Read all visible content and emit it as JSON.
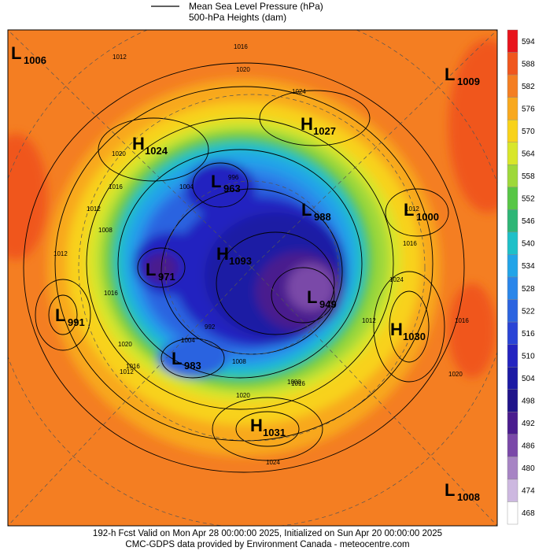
{
  "legend": {
    "pressure": "Mean Sea Level Pressure (hPa)",
    "heights": "500-hPa Heights (dam)"
  },
  "colorbar": [
    {
      "label": "594",
      "color": "#e8141c"
    },
    {
      "label": "588",
      "color": "#f0561e"
    },
    {
      "label": "582",
      "color": "#f47e22"
    },
    {
      "label": "576",
      "color": "#f8a81e"
    },
    {
      "label": "570",
      "color": "#f8d21a"
    },
    {
      "label": "564",
      "color": "#d8e62a"
    },
    {
      "label": "558",
      "color": "#9ed83a"
    },
    {
      "label": "552",
      "color": "#58c646"
    },
    {
      "label": "546",
      "color": "#2eb676"
    },
    {
      "label": "540",
      "color": "#1ec0c8"
    },
    {
      "label": "534",
      "color": "#22a4e8"
    },
    {
      "label": "528",
      "color": "#2a86ea"
    },
    {
      "label": "522",
      "color": "#2c64e0"
    },
    {
      "label": "516",
      "color": "#2a44d6"
    },
    {
      "label": "510",
      "color": "#2424c0"
    },
    {
      "label": "504",
      "color": "#1c1aa4"
    },
    {
      "label": "498",
      "color": "#20148a"
    },
    {
      "label": "492",
      "color": "#4a1c8e"
    },
    {
      "label": "486",
      "color": "#7a48a8"
    },
    {
      "label": "480",
      "color": "#a784c4"
    },
    {
      "label": "474",
      "color": "#cdb8e0"
    },
    {
      "label": "468",
      "color": "#ffffff"
    }
  ],
  "centers": [
    {
      "letter": "L",
      "value": "1006"
    },
    {
      "letter": "L",
      "value": "1009"
    },
    {
      "letter": "H",
      "value": "1027"
    },
    {
      "letter": "H",
      "value": "1024"
    },
    {
      "letter": "L",
      "value": "963"
    },
    {
      "letter": "L",
      "value": "988"
    },
    {
      "letter": "L",
      "value": "1000"
    },
    {
      "letter": "L",
      "value": "971"
    },
    {
      "letter": "H",
      "value": "1093"
    },
    {
      "letter": "L",
      "value": "949"
    },
    {
      "letter": "L",
      "value": "991"
    },
    {
      "letter": "H",
      "value": "1030"
    },
    {
      "letter": "L",
      "value": "983"
    },
    {
      "letter": "H",
      "value": "1031"
    },
    {
      "letter": "L",
      "value": "1008"
    }
  ],
  "contour_labels": [
    "1012",
    "1016",
    "1020",
    "1024",
    "1020",
    "1016",
    "1012",
    "1008",
    "1004",
    "1012",
    "1016",
    "1020",
    "1016",
    "1012",
    "1024",
    "1016",
    "1012",
    "1016",
    "1020",
    "1024",
    "1012",
    "1020",
    "1016",
    "1000",
    "992",
    "1004",
    "1008",
    "996"
  ],
  "footer": {
    "line1": "192-h Fcst Valid on Mon Apr 28 00:00:00 2025, Initialized on Sun Apr 20 00:00:00 2025",
    "line2": "CMC-GDPS data provided by Environment Canada - meteocentre.com"
  }
}
